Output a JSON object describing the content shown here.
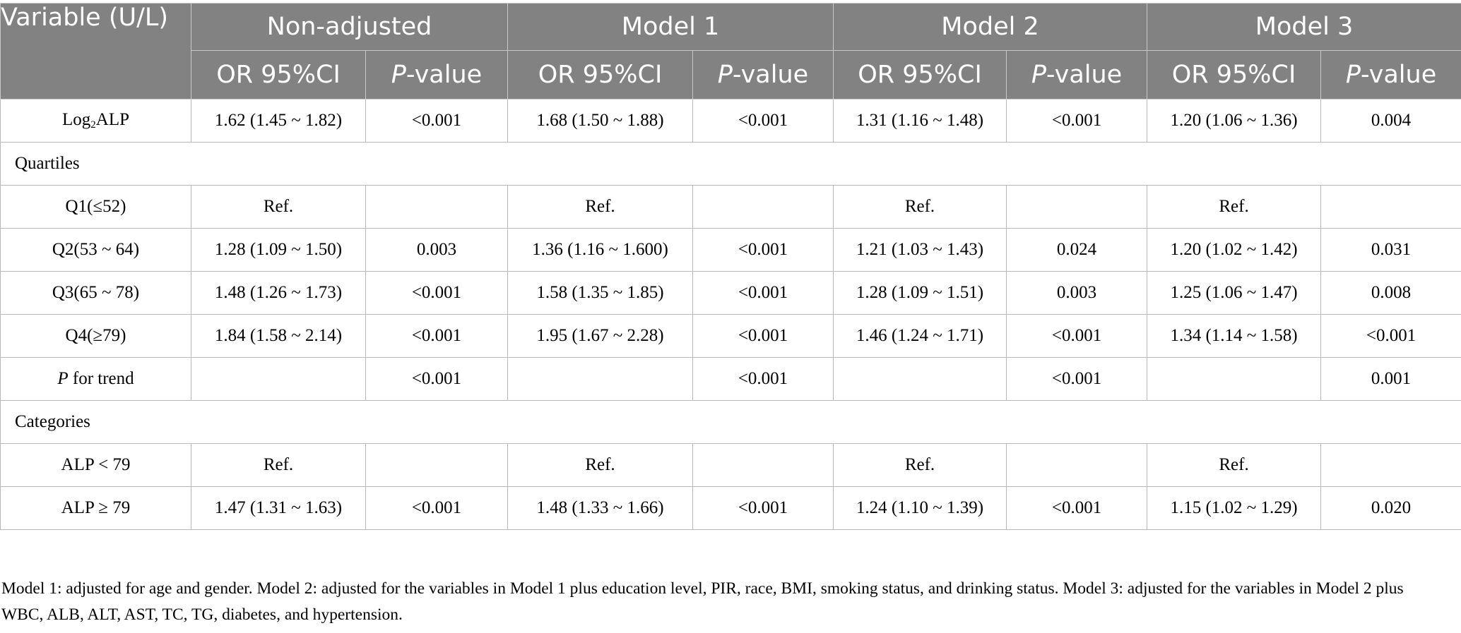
{
  "header": {
    "variable": "Variable (U/L)",
    "models": [
      "Non-adjusted",
      "Model 1",
      "Model 2",
      "Model 3"
    ],
    "or_ci": "OR 95%CI",
    "p_italic": "P",
    "p_suffix": "-value"
  },
  "rows": {
    "log2alp": {
      "label_pre": "Log",
      "label_sub": "2",
      "label_post": "ALP",
      "cells": [
        "1.62 (1.45 ~ 1.82)",
        "<0.001",
        "1.68 (1.50 ~ 1.88)",
        "<0.001",
        "1.31 (1.16 ~ 1.48)",
        "<0.001",
        "1.20 (1.06 ~ 1.36)",
        "0.004"
      ]
    },
    "quartiles_title": "Quartiles",
    "q1": {
      "label": "Q1(≤52)",
      "cells": [
        "Ref.",
        "",
        "Ref.",
        "",
        "Ref.",
        "",
        "Ref.",
        ""
      ]
    },
    "q2": {
      "label": "Q2(53 ~ 64)",
      "cells": [
        "1.28 (1.09 ~ 1.50)",
        "0.003",
        "1.36 (1.16 ~ 1.600)",
        "<0.001",
        "1.21 (1.03 ~ 1.43)",
        "0.024",
        "1.20 (1.02 ~ 1.42)",
        "0.031"
      ]
    },
    "q3": {
      "label": "Q3(65 ~ 78)",
      "cells": [
        "1.48 (1.26 ~ 1.73)",
        "<0.001",
        "1.58 (1.35 ~ 1.85)",
        "<0.001",
        "1.28 (1.09 ~ 1.51)",
        "0.003",
        "1.25 (1.06 ~ 1.47)",
        "0.008"
      ]
    },
    "q4": {
      "label": "Q4(≥79)",
      "cells": [
        "1.84 (1.58 ~ 2.14)",
        "<0.001",
        "1.95 (1.67 ~ 2.28)",
        "<0.001",
        "1.46 (1.24 ~ 1.71)",
        "<0.001",
        "1.34 (1.14 ~ 1.58)",
        "<0.001"
      ]
    },
    "trend": {
      "label_italic": "P",
      "label_rest": " for trend",
      "cells": [
        "",
        "<0.001",
        "",
        "<0.001",
        "",
        "<0.001",
        "",
        "0.001"
      ]
    },
    "categories_title": "Categories",
    "alp_low": {
      "label": "ALP < 79",
      "cells": [
        "Ref.",
        "",
        "Ref.",
        "",
        "Ref.",
        "",
        "Ref.",
        ""
      ]
    },
    "alp_high": {
      "label": "ALP ≥ 79",
      "cells": [
        "1.47 (1.31 ~ 1.63)",
        "<0.001",
        "1.48 (1.33 ~ 1.66)",
        "<0.001",
        "1.24 (1.10 ~ 1.39)",
        "<0.001",
        "1.15 (1.02 ~ 1.29)",
        "0.020"
      ]
    }
  },
  "footnote": "Model 1: adjusted for age and gender. Model 2: adjusted for the variables in Model 1 plus education level, PIR, race, BMI, smoking status, and drinking status. Model 3: adjusted for the variables in Model 2 plus WBC, ALB, ALT, AST, TC, TG, diabetes, and hypertension.",
  "colors": {
    "header_bg": "#828282",
    "header_text": "#ffffff",
    "border": "#b9b9b9"
  }
}
